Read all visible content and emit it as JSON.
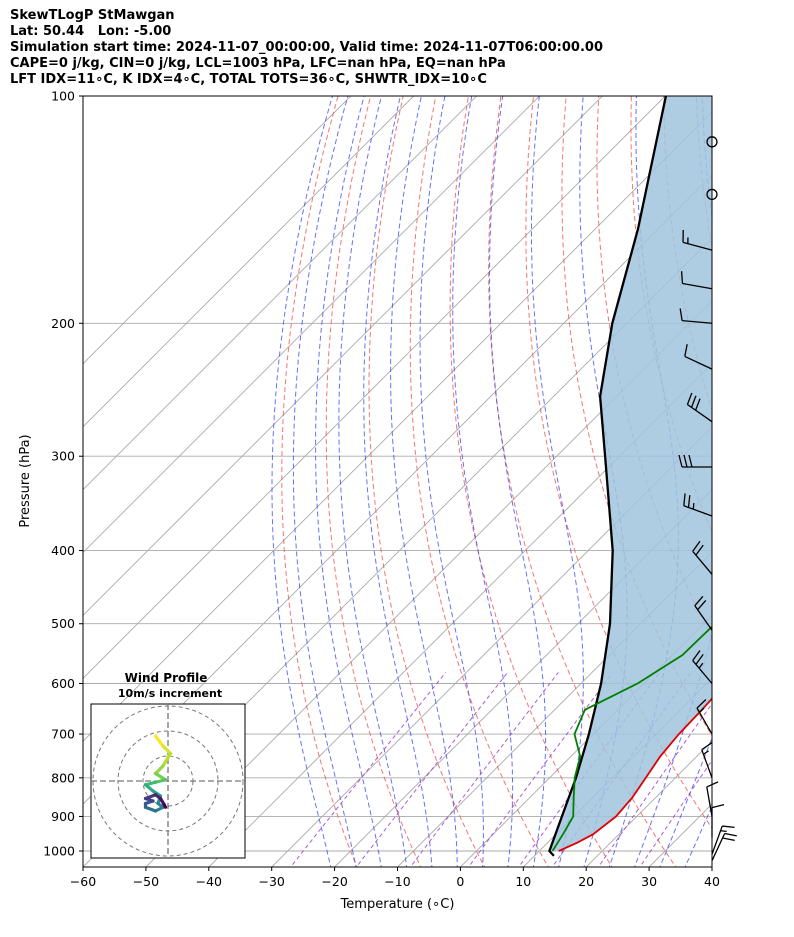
{
  "header": {
    "line1": "SkewTLogP StMawgan",
    "line2": "Lat: 50.44   Lon: -5.00",
    "line3": "Simulation start time: 2024-11-07_00:00:00, Valid time: 2024-11-07T06:00:00.00",
    "line4": "CAPE=0 j/kg, CIN=0 j/kg, LCL=1003 hPa, LFC=nan hPa, EQ=nan hPa",
    "line5": "LFT IDX=11∘C, K IDX=4∘C, TOTAL TOTS=36∘C, SHWTR_IDX=10∘C"
  },
  "colors": {
    "temperature": "#e00000",
    "dewpoint": "#008000",
    "parcel": "#000000",
    "fill": "#a0c4de",
    "dry_adiabat": "#ee5555",
    "moist_adiabat": "#3344ee",
    "mixing_ratio": "#9933cc",
    "isotherm": "#aaaaaa"
  },
  "chart_data": {
    "type": "line",
    "xlabel": "Temperature (∘C)",
    "ylabel": "Pressure (hPa)",
    "xlim": [
      -60,
      40
    ],
    "ylim": [
      1050,
      100
    ],
    "y_scale": "log",
    "x_ticks": [
      "−60",
      "−50",
      "−40",
      "−30",
      "−20",
      "−10",
      "0",
      "10",
      "20",
      "30",
      "40"
    ],
    "y_ticks": [
      "1000",
      "900",
      "800",
      "700",
      "600",
      "500",
      "400",
      "300",
      "200",
      "100"
    ],
    "grid": true,
    "series": [
      {
        "key": "temperature",
        "points": [
          [
            1000,
            13.1
          ],
          [
            975,
            14.7
          ],
          [
            950,
            15.9
          ],
          [
            900,
            16.7
          ],
          [
            850,
            16.3
          ],
          [
            800,
            15.3
          ],
          [
            750,
            14.2
          ],
          [
            700,
            13.6
          ],
          [
            650,
            13.4
          ],
          [
            600,
            13.0
          ],
          [
            550,
            10.9
          ],
          [
            500,
            8.9
          ],
          [
            450,
            7.3
          ],
          [
            400,
            4.9
          ],
          [
            350,
            1.0
          ],
          [
            300,
            -3.4
          ],
          [
            250,
            -7.0
          ],
          [
            220,
            -7.8
          ],
          [
            200,
            -6.4
          ],
          [
            180,
            -2.7
          ],
          [
            170,
            0.9
          ],
          [
            150,
            7.1
          ],
          [
            130,
            13.5
          ],
          [
            110,
            18.9
          ],
          [
            100,
            21.9
          ]
        ]
      },
      {
        "key": "dewpoint",
        "points": [
          [
            1000,
            12.1
          ],
          [
            950,
            11.1
          ],
          [
            900,
            9.9
          ],
          [
            850,
            7.0
          ],
          [
            800,
            4.0
          ],
          [
            750,
            1.5
          ],
          [
            700,
            -3.0
          ],
          [
            650,
            -5.2
          ],
          [
            600,
            -1.0
          ],
          [
            550,
            1.6
          ],
          [
            500,
            1.8
          ],
          [
            450,
            0.4
          ],
          [
            420,
            -1.8
          ],
          [
            400,
            -5.5
          ],
          [
            380,
            -10.3
          ],
          [
            350,
            -12.5
          ],
          [
            330,
            -11.5
          ],
          [
            300,
            -10.5
          ],
          [
            270,
            -10.5
          ],
          [
            250,
            -10.0
          ],
          [
            220,
            -8.5
          ],
          [
            200,
            -7.0
          ],
          [
            180,
            -4.5
          ],
          [
            160,
            -1.2
          ],
          [
            140,
            2.7
          ],
          [
            120,
            6.6
          ],
          [
            100,
            13.2
          ]
        ]
      },
      {
        "key": "parcel",
        "points": [
          [
            1015,
            13.1
          ],
          [
            1000,
            11.6
          ],
          [
            900,
            8.1
          ],
          [
            800,
            4.2
          ],
          [
            700,
            -0.7
          ],
          [
            600,
            -6.8
          ],
          [
            500,
            -14.9
          ],
          [
            400,
            -26.1
          ],
          [
            300,
            -42.3
          ],
          [
            250,
            -52.6
          ],
          [
            200,
            -62.3
          ],
          [
            150,
            -73.2
          ],
          [
            100,
            -89.9
          ]
        ]
      }
    ],
    "shaded_region": "between parcel and temperature",
    "wind_barbs": [
      {
        "p": 115,
        "speed_kt": 0,
        "dir": 0
      },
      {
        "p": 135,
        "speed_kt": 0,
        "dir": 0
      },
      {
        "p": 160,
        "speed_kt": 15,
        "dir": 285
      },
      {
        "p": 180,
        "speed_kt": 10,
        "dir": 280
      },
      {
        "p": 200,
        "speed_kt": 10,
        "dir": 275
      },
      {
        "p": 230,
        "speed_kt": 10,
        "dir": 295
      },
      {
        "p": 270,
        "speed_kt": 30,
        "dir": 305
      },
      {
        "p": 310,
        "speed_kt": 30,
        "dir": 270
      },
      {
        "p": 360,
        "speed_kt": 25,
        "dir": 290
      },
      {
        "p": 430,
        "speed_kt": 20,
        "dir": 320
      },
      {
        "p": 510,
        "speed_kt": 20,
        "dir": 325
      },
      {
        "p": 600,
        "speed_kt": 25,
        "dir": 320
      },
      {
        "p": 700,
        "speed_kt": 15,
        "dir": 330
      },
      {
        "p": 800,
        "speed_kt": 15,
        "dir": 340
      },
      {
        "p": 900,
        "speed_kt": 10,
        "dir": 350
      },
      {
        "p": 960,
        "speed_kt": 10,
        "dir": 0
      },
      {
        "p": 1010,
        "speed_kt": 15,
        "dir": 20
      },
      {
        "p": 1030,
        "speed_kt": 20,
        "dir": 25
      }
    ],
    "hodograph": {
      "title_line1": "Wind Profile",
      "title_line2": "10m/s increment",
      "rings": [
        1,
        2,
        3
      ],
      "colormap": "viridis",
      "points": [
        [
          -0.5,
          -1.8
        ],
        [
          -0.2,
          -1.4
        ],
        [
          0.1,
          -1.1
        ],
        [
          -0.2,
          -0.6
        ],
        [
          -0.5,
          -0.3
        ],
        [
          -0.1,
          -0.05
        ],
        [
          -0.5,
          0.05
        ],
        [
          -0.9,
          0.15
        ],
        [
          -0.6,
          0.4
        ],
        [
          -0.3,
          0.6
        ],
        [
          -0.4,
          0.9
        ],
        [
          -0.2,
          1.05
        ],
        [
          -0.5,
          1.2
        ],
        [
          -0.9,
          1.05
        ],
        [
          -0.9,
          0.9
        ],
        [
          -0.6,
          0.8
        ],
        [
          -0.9,
          0.7
        ],
        [
          -0.5,
          0.55
        ],
        [
          -0.3,
          0.7
        ],
        [
          -0.15,
          0.95
        ],
        [
          -0.1,
          1.05
        ]
      ]
    }
  }
}
